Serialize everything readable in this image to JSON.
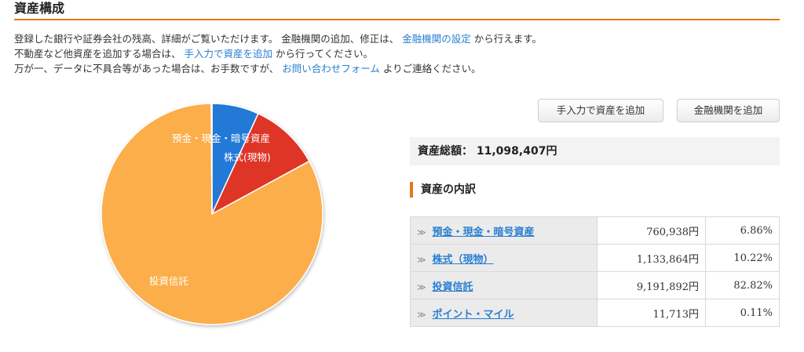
{
  "section_title": "資産構成",
  "description": {
    "line1_prefix": "登録した銀行や証券会社の残高、詳細がご覧いただけます。 金融機関の追加、修正は、",
    "line1_link": "金融機関の設定",
    "line1_suffix": "から行えます。",
    "line2_prefix": "不動産など他資産を追加する場合は、",
    "line2_link": "手入力で資産を追加",
    "line2_suffix": "から行ってください。",
    "line3_prefix": "万が一、データに不具合等があった場合は、お手数ですが、",
    "line3_link": "お問い合わせフォーム",
    "line3_suffix": "よりご連絡ください。"
  },
  "buttons": {
    "add_manual": "手入力で資産を追加",
    "add_institution": "金融機関を追加"
  },
  "total": {
    "label": "資産総額：",
    "value": "11,098,407円"
  },
  "breakdown_title": "資産の内訳",
  "chevron": "≫",
  "breakdown": [
    {
      "name": "預金・現金・暗号資産",
      "amount": "760,938円",
      "percent": "6.86%"
    },
    {
      "name": "株式（現物）",
      "amount": "1,133,864円",
      "percent": "10.22%"
    },
    {
      "name": "投資信託",
      "amount": "9,191,892円",
      "percent": "82.82%"
    },
    {
      "name": "ポイント・マイル",
      "amount": "11,713円",
      "percent": "0.11%"
    }
  ],
  "chart_data": {
    "type": "pie",
    "categories": [
      "預金・現金・暗号資産",
      "株式(現物)",
      "投資信託",
      "ポイント・マイル"
    ],
    "values": [
      6.86,
      10.22,
      82.82,
      0.11
    ],
    "labels": [
      "預金・現金・暗号資産",
      "株式(現物)",
      "投資信託",
      ""
    ],
    "colors": [
      "#2479d6",
      "#de3527",
      "#fcae4c",
      "#a7d43a"
    ]
  }
}
